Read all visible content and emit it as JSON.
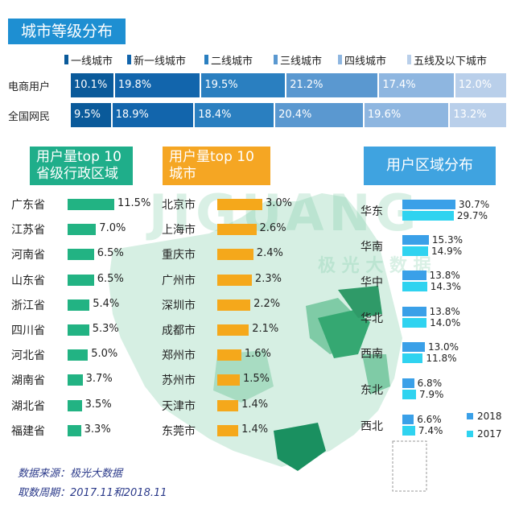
{
  "title": "城市等级分布",
  "colors": {
    "tier1": "#0a5a9a",
    "new_tier1": "#1265ac",
    "tier2": "#2a7fc0",
    "tier3": "#5a98d0",
    "tier4": "#8eb6e0",
    "tier5": "#b9cfea",
    "green_header": "#1fae8a",
    "orange_header": "#f5a623",
    "blue_header": "#3fa3e0",
    "green_bar": "#22b383",
    "orange_bar": "#f5a81b",
    "region_2018": "#3aa0e8",
    "region_2017": "#2fd3f0"
  },
  "chart_data": [
    {
      "type": "bar",
      "subtype": "stacked-horizontal",
      "title": "城市等级分布",
      "categories": [
        "电商用户",
        "全国网民"
      ],
      "series": [
        {
          "name": "一线城市",
          "values": [
            10.1,
            9.5
          ],
          "labels": [
            "10.1%",
            "9.5%"
          ]
        },
        {
          "name": "新一线城市",
          "values": [
            19.8,
            18.9
          ],
          "labels": [
            "19.8%",
            "18.9%"
          ]
        },
        {
          "name": "二线城市",
          "values": [
            19.5,
            18.4
          ],
          "labels": [
            "19.5%",
            "18.4%"
          ]
        },
        {
          "name": "三线城市",
          "values": [
            21.2,
            20.4
          ],
          "labels": [
            "21.2%",
            "20.4%"
          ]
        },
        {
          "name": "四线城市",
          "values": [
            17.4,
            19.6
          ],
          "labels": [
            "17.4%",
            "19.6%"
          ]
        },
        {
          "name": "五线及以下城市",
          "values": [
            12.0,
            13.2
          ],
          "labels": [
            "12.0%",
            "13.2%"
          ]
        }
      ]
    },
    {
      "type": "bar",
      "subtype": "horizontal",
      "title": "用户量top 10 省级行政区域",
      "title_lines": [
        "用户量top 10",
        "省级行政区域"
      ],
      "categories": [
        "广东省",
        "江苏省",
        "河南省",
        "山东省",
        "浙江省",
        "四川省",
        "河北省",
        "湖南省",
        "湖北省",
        "福建省"
      ],
      "values": [
        11.5,
        7.0,
        6.5,
        6.5,
        5.4,
        5.3,
        5.0,
        3.7,
        3.5,
        3.3
      ],
      "labels": [
        "11.5%",
        "7.0%",
        "6.5%",
        "6.5%",
        "5.4%",
        "5.3%",
        "5.0%",
        "3.7%",
        "3.5%",
        "3.3%"
      ]
    },
    {
      "type": "bar",
      "subtype": "horizontal",
      "title": "用户量top 10 城市",
      "title_lines": [
        "用户量top 10",
        "城市"
      ],
      "categories": [
        "北京市",
        "上海市",
        "重庆市",
        "广州市",
        "深圳市",
        "成都市",
        "郑州市",
        "苏州市",
        "天津市",
        "东莞市"
      ],
      "values": [
        3.0,
        2.6,
        2.4,
        2.3,
        2.2,
        2.1,
        1.6,
        1.5,
        1.4,
        1.4
      ],
      "labels": [
        "3.0%",
        "2.6%",
        "2.4%",
        "2.3%",
        "2.2%",
        "2.1%",
        "1.6%",
        "1.5%",
        "1.4%",
        "1.4%"
      ]
    },
    {
      "type": "bar",
      "subtype": "grouped-horizontal",
      "title": "用户区域分布",
      "categories": [
        "华东",
        "华南",
        "华中",
        "华北",
        "西南",
        "东北",
        "西北"
      ],
      "series": [
        {
          "name": "2018",
          "values": [
            30.7,
            15.3,
            13.8,
            13.8,
            13.0,
            6.8,
            6.6
          ],
          "labels": [
            "30.7%",
            "15.3%",
            "13.8%",
            "13.8%",
            "13.0%",
            "6.8%",
            "6.6%"
          ]
        },
        {
          "name": "2017",
          "values": [
            29.7,
            14.9,
            14.3,
            14.0,
            11.8,
            7.9,
            7.4
          ],
          "labels": [
            "29.7%",
            "14.9%",
            "14.3%",
            "14.0%",
            "11.8%",
            "7.9%",
            "7.4%"
          ]
        }
      ],
      "legend": [
        "2018",
        "2017"
      ]
    }
  ],
  "watermark": {
    "latin": "JIGUANG",
    "chinese": "极 光 大 数 据"
  },
  "footer": {
    "source": "数据来源：极光大数据",
    "period": "取数周期：2017.11和2018.11"
  }
}
